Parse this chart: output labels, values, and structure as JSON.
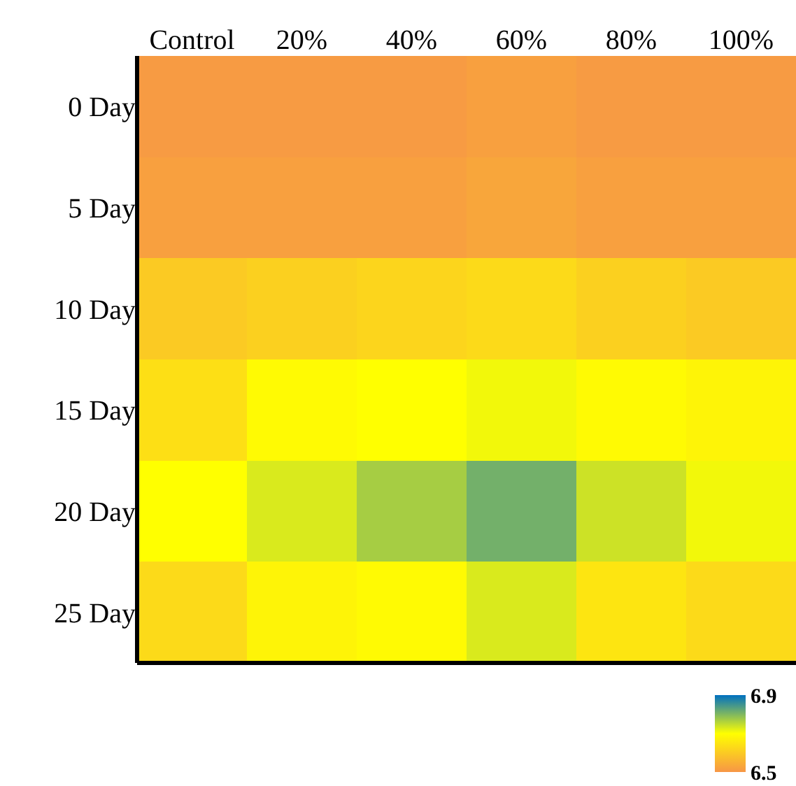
{
  "chart_data": {
    "type": "heatmap",
    "categories": [
      "Control",
      "20%",
      "40%",
      "60%",
      "80%",
      "100%"
    ],
    "y_categories": [
      "0 Day",
      "5 Day",
      "10 Day",
      "15 Day",
      "20 Day",
      "25 Day"
    ],
    "cells": [
      [
        6.51,
        6.51,
        6.51,
        6.52,
        6.51,
        6.51
      ],
      [
        6.52,
        6.52,
        6.52,
        6.53,
        6.52,
        6.52
      ],
      [
        6.6,
        6.61,
        6.62,
        6.63,
        6.61,
        6.6
      ],
      [
        6.64,
        6.69,
        6.7,
        6.71,
        6.69,
        6.68
      ],
      [
        6.7,
        6.73,
        6.77,
        6.81,
        6.74,
        6.71
      ],
      [
        6.63,
        6.68,
        6.69,
        6.73,
        6.65,
        6.63
      ]
    ],
    "clim": [
      6.5,
      6.9
    ],
    "cticks": [
      6.5,
      6.9
    ]
  }
}
